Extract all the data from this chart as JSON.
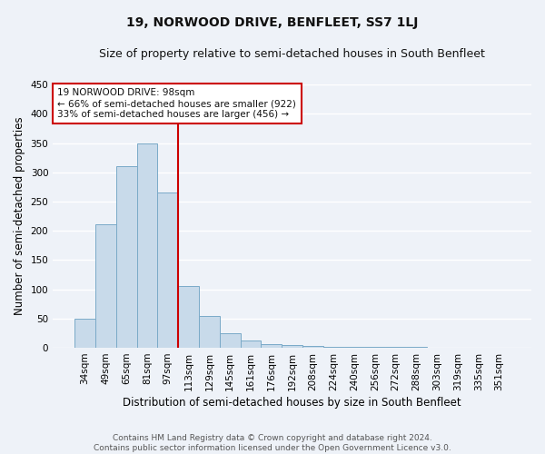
{
  "title": "19, NORWOOD DRIVE, BENFLEET, SS7 1LJ",
  "subtitle": "Size of property relative to semi-detached houses in South Benfleet",
  "xlabel": "Distribution of semi-detached houses by size in South Benfleet",
  "ylabel": "Number of semi-detached properties",
  "categories": [
    "34sqm",
    "49sqm",
    "65sqm",
    "81sqm",
    "97sqm",
    "113sqm",
    "129sqm",
    "145sqm",
    "161sqm",
    "176sqm",
    "192sqm",
    "208sqm",
    "224sqm",
    "240sqm",
    "256sqm",
    "272sqm",
    "288sqm",
    "303sqm",
    "319sqm",
    "335sqm",
    "351sqm"
  ],
  "values": [
    50,
    211,
    311,
    350,
    265,
    105,
    55,
    25,
    12,
    6,
    4,
    3,
    2,
    2,
    1,
    1,
    1,
    0,
    0,
    0,
    0
  ],
  "bar_color": "#c8daea",
  "bar_edge_color": "#7aaac8",
  "reference_line_index": 4,
  "annotation_text_line1": "19 NORWOOD DRIVE: 98sqm",
  "annotation_text_line2": "← 66% of semi-detached houses are smaller (922)",
  "annotation_text_line3": "33% of semi-detached houses are larger (456) →",
  "annotation_box_color": "#ffffff",
  "annotation_box_edge": "#cc0000",
  "ref_line_color": "#cc0000",
  "ylim": [
    0,
    450
  ],
  "yticks": [
    0,
    50,
    100,
    150,
    200,
    250,
    300,
    350,
    400,
    450
  ],
  "footer_line1": "Contains HM Land Registry data © Crown copyright and database right 2024.",
  "footer_line2": "Contains public sector information licensed under the Open Government Licence v3.0.",
  "bg_color": "#eef2f8",
  "grid_color": "#ffffff",
  "title_fontsize": 10,
  "subtitle_fontsize": 9,
  "axis_label_fontsize": 8.5,
  "tick_fontsize": 7.5,
  "annotation_fontsize": 7.5,
  "footer_fontsize": 6.5
}
